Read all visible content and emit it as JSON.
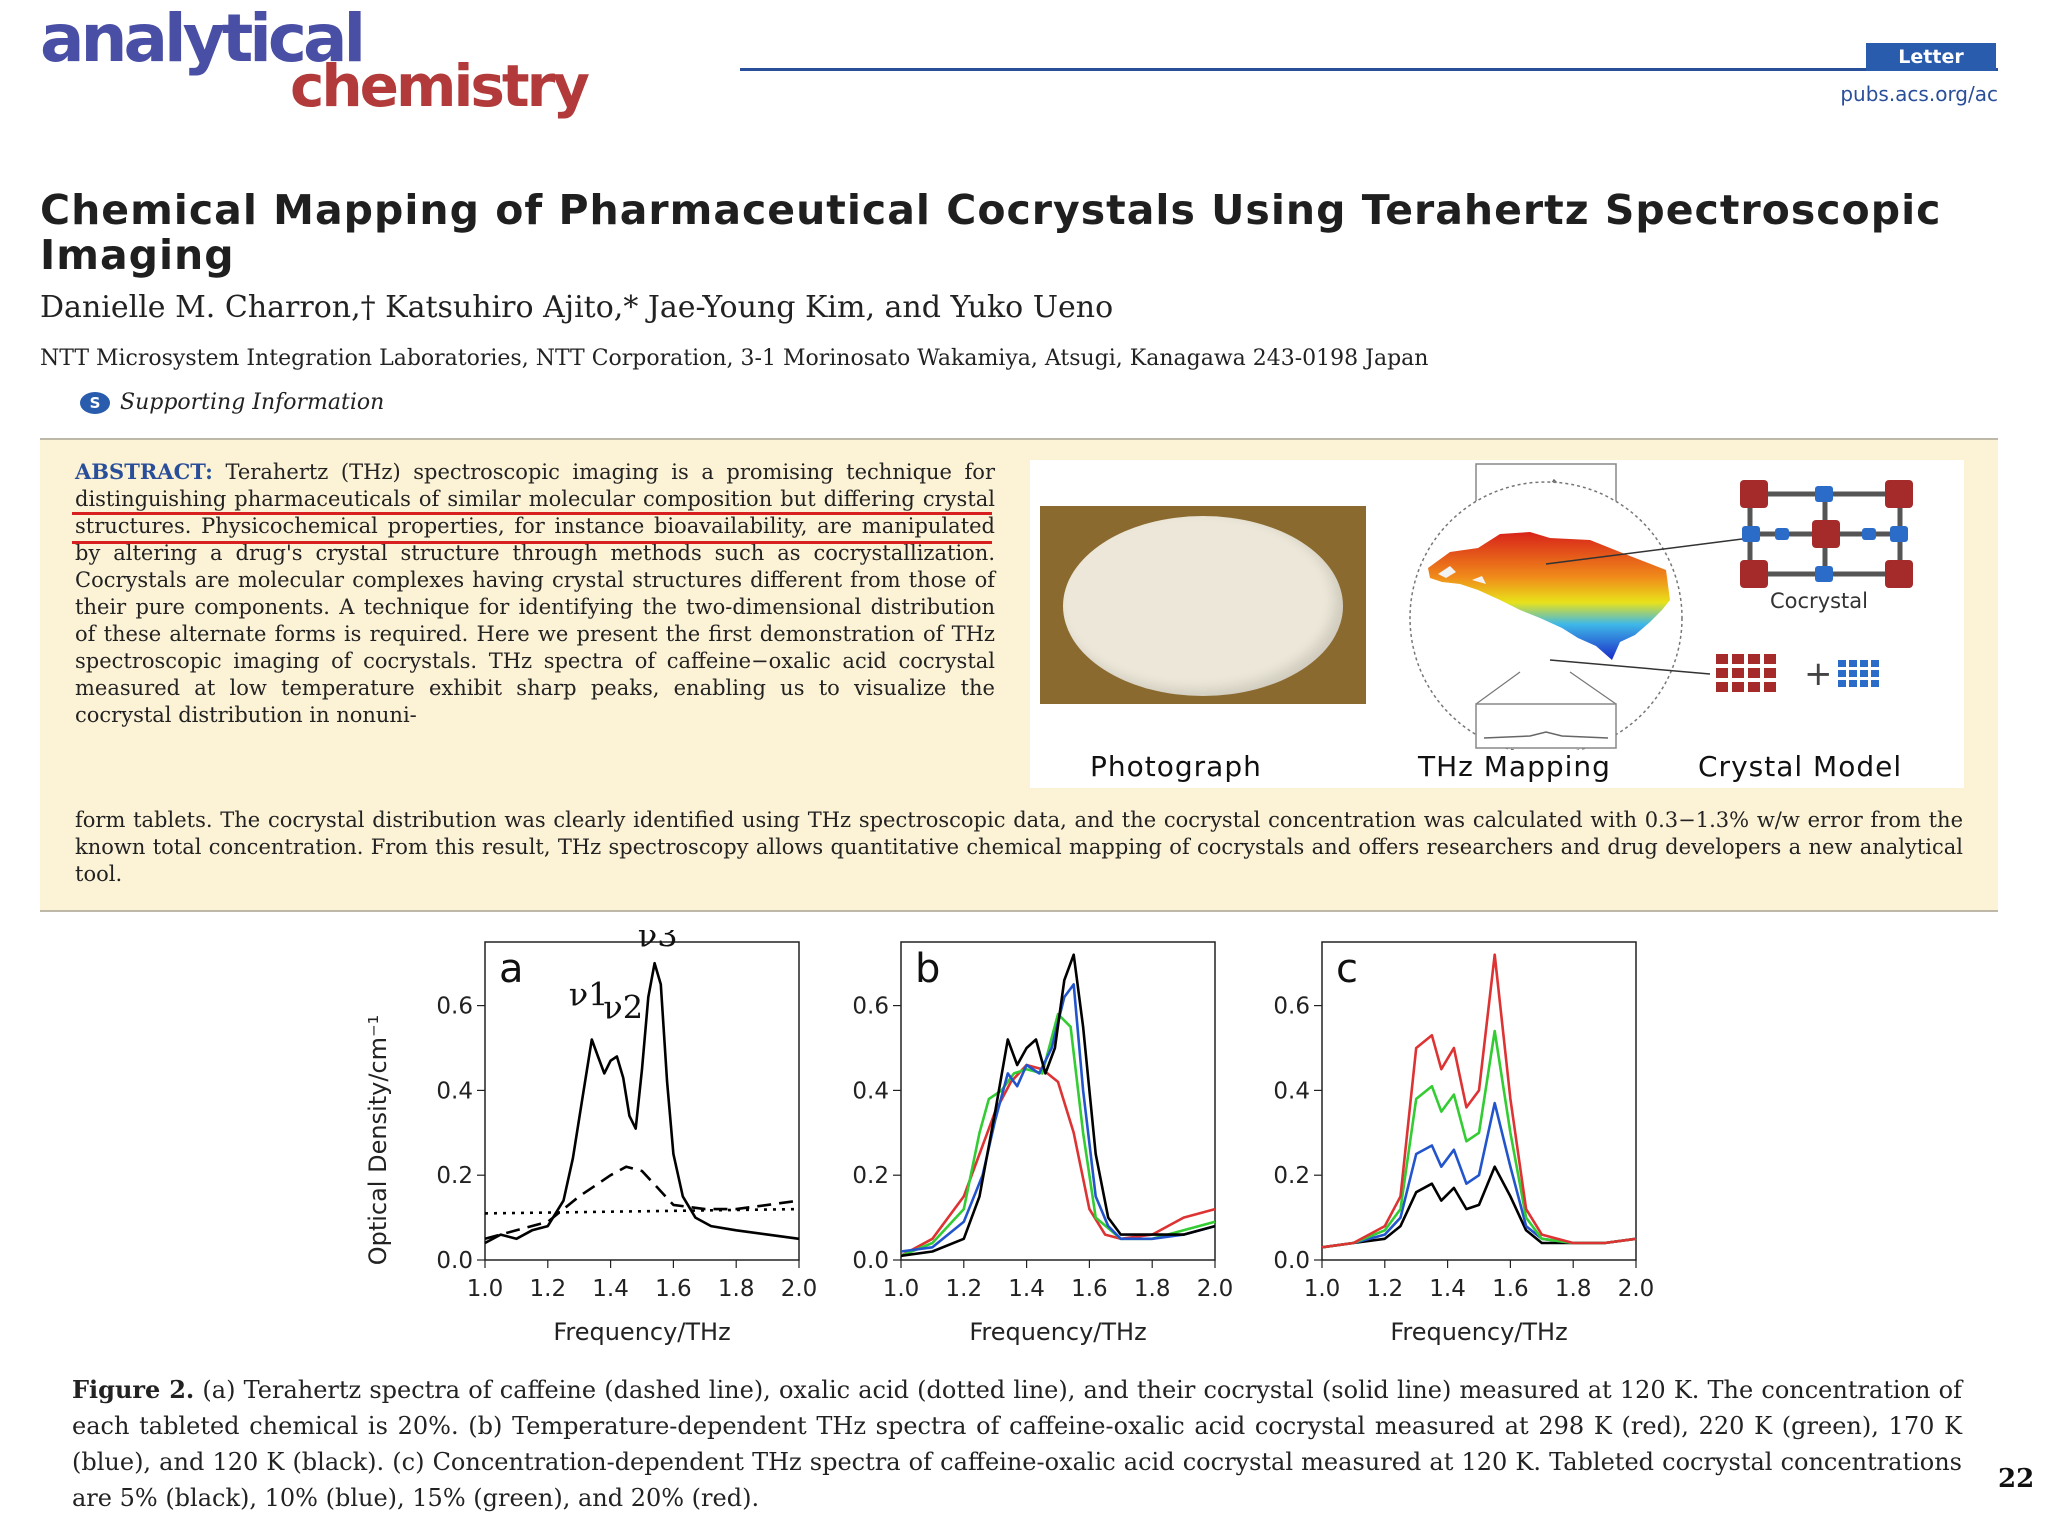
{
  "journal": {
    "logo_line1": "analytical",
    "logo_line2": "chemistry",
    "article_type": "Letter",
    "site": "pubs.acs.org/ac"
  },
  "title": "Chemical Mapping of Pharmaceutical Cocrystals Using Terahertz Spectroscopic Imaging",
  "authors": "Danielle M. Charron,† Katsuhiro Ajito,* Jae-Young Kim, and Yuko Ueno",
  "affiliation": "NTT Microsystem Integration Laboratories, NTT Corporation, 3-1 Morinosato Wakamiya, Atsugi, Kanagawa 243-0198 Japan",
  "supporting": {
    "icon": "S",
    "label": "Supporting Information"
  },
  "abstract": {
    "label": "ABSTRACT:",
    "text_a": "Terahertz (THz) spectroscopic imaging is a promising technique for distinguishing pharmaceuticals of similar molecular composition but differing crystal structures. Physicochemical properties, for instance bioavailability, are manipulated by altering a drug's crystal structure through methods such as cocrystallization. Cocrystals are molecular complexes having crystal structures different from those of their pure components. A technique for identifying the two-dimensional distribution of these alternate forms is required. Here we present the first demonstration of THz spectroscopic imaging of cocrystals. THz spectra of caffeine−oxalic acid cocrystal measured at low temperature exhibit sharp peaks, enabling us to visualize the cocrystal distribution in nonuni-",
    "text_b": "form tablets. The cocrystal distribution was clearly identified using THz spectroscopic data, and the cocrystal concentration was calculated with 0.3−1.3% w/w error from the known total concentration. From this result, THz spectroscopy allows quantitative chemical mapping of cocrystals and offers researchers and drug developers a new analytical tool."
  },
  "graphic": {
    "label_photo": "Photograph",
    "label_mapping": "THz Mapping",
    "label_model": "Crystal Model",
    "label_cocrystal": "Cocrystal",
    "plus": "+"
  },
  "figure": {
    "panels": [
      "a",
      "b",
      "c"
    ],
    "ylabel": "Optical Density/cm⁻¹",
    "xlabel": "Frequency/THz",
    "peak_labels": [
      "ν1",
      "ν2",
      "ν3"
    ],
    "caption_label": "Figure 2.",
    "caption_text": "(a) Terahertz spectra of caffeine (dashed line), oxalic acid (dotted line), and their cocrystal (solid line) measured at 120 K. The concentration of each tableted chemical is 20%. (b) Temperature-dependent THz spectra of caffeine-oxalic acid cocrystal measured at 298 K (red), 220 K (green), 170 K (blue), and 120 K (black). (c) Concentration-dependent THz spectra of caffeine-oxalic acid cocrystal measured at 120 K. Tableted cocrystal concentrations are 5% (black), 10% (blue), 15% (green), and 20% (red)."
  },
  "chart_data": [
    {
      "type": "line",
      "panel": "a",
      "xlabel": "Frequency/THz",
      "ylabel": "Optical Density/cm⁻¹",
      "xlim": [
        1.0,
        2.0
      ],
      "ylim": [
        0.0,
        0.75
      ],
      "xticks": [
        "1.0",
        "1.2",
        "1.4",
        "1.6",
        "1.8",
        "2.0"
      ],
      "yticks": [
        "0.0",
        "0.2",
        "0.4",
        "0.6"
      ],
      "annotations": [
        "ν1",
        "ν2",
        "ν3"
      ],
      "series": [
        {
          "style": "solid",
          "color": "#000000",
          "x": [
            1.0,
            1.05,
            1.1,
            1.15,
            1.2,
            1.25,
            1.28,
            1.31,
            1.34,
            1.36,
            1.38,
            1.4,
            1.42,
            1.44,
            1.46,
            1.48,
            1.5,
            1.52,
            1.54,
            1.56,
            1.58,
            1.6,
            1.63,
            1.67,
            1.72,
            1.8,
            1.9,
            2.0
          ],
          "y": [
            0.04,
            0.06,
            0.05,
            0.07,
            0.08,
            0.14,
            0.24,
            0.38,
            0.52,
            0.48,
            0.44,
            0.47,
            0.48,
            0.43,
            0.34,
            0.31,
            0.45,
            0.62,
            0.7,
            0.65,
            0.42,
            0.25,
            0.15,
            0.1,
            0.08,
            0.07,
            0.06,
            0.05
          ]
        },
        {
          "style": "dashed",
          "color": "#000000",
          "x": [
            1.0,
            1.1,
            1.2,
            1.3,
            1.4,
            1.45,
            1.5,
            1.55,
            1.6,
            1.7,
            1.8,
            1.9,
            2.0
          ],
          "y": [
            0.05,
            0.07,
            0.09,
            0.15,
            0.2,
            0.22,
            0.21,
            0.17,
            0.13,
            0.12,
            0.12,
            0.13,
            0.14
          ]
        },
        {
          "style": "dotted",
          "color": "#000000",
          "x": [
            1.0,
            2.0
          ],
          "y": [
            0.11,
            0.12
          ]
        }
      ]
    },
    {
      "type": "line",
      "panel": "b",
      "xlabel": "Frequency/THz",
      "xlim": [
        1.0,
        2.0
      ],
      "ylim": [
        0.0,
        0.75
      ],
      "xticks": [
        "1.0",
        "1.2",
        "1.4",
        "1.6",
        "1.8",
        "2.0"
      ],
      "yticks": [
        "0.0",
        "0.2",
        "0.4",
        "0.6"
      ],
      "series": [
        {
          "color": "#d33",
          "x": [
            1.0,
            1.1,
            1.2,
            1.25,
            1.3,
            1.35,
            1.4,
            1.45,
            1.5,
            1.55,
            1.6,
            1.65,
            1.7,
            1.8,
            1.9,
            2.0
          ],
          "y": [
            0.01,
            0.05,
            0.15,
            0.25,
            0.35,
            0.42,
            0.46,
            0.45,
            0.42,
            0.3,
            0.12,
            0.06,
            0.05,
            0.06,
            0.1,
            0.12
          ]
        },
        {
          "color": "#3c3",
          "x": [
            1.0,
            1.1,
            1.2,
            1.25,
            1.28,
            1.32,
            1.36,
            1.4,
            1.45,
            1.5,
            1.54,
            1.58,
            1.62,
            1.7,
            1.8,
            1.9,
            2.0
          ],
          "y": [
            0.01,
            0.04,
            0.12,
            0.3,
            0.38,
            0.4,
            0.44,
            0.45,
            0.44,
            0.58,
            0.55,
            0.3,
            0.1,
            0.05,
            0.05,
            0.07,
            0.09
          ]
        },
        {
          "color": "#25c",
          "x": [
            1.0,
            1.1,
            1.2,
            1.26,
            1.3,
            1.34,
            1.37,
            1.4,
            1.44,
            1.48,
            1.52,
            1.55,
            1.58,
            1.62,
            1.66,
            1.7,
            1.8,
            1.9,
            2.0
          ],
          "y": [
            0.02,
            0.03,
            0.09,
            0.2,
            0.33,
            0.44,
            0.41,
            0.46,
            0.44,
            0.5,
            0.62,
            0.65,
            0.4,
            0.15,
            0.08,
            0.05,
            0.05,
            0.06,
            0.08
          ]
        },
        {
          "color": "#000",
          "x": [
            1.0,
            1.1,
            1.2,
            1.25,
            1.3,
            1.34,
            1.37,
            1.4,
            1.43,
            1.46,
            1.49,
            1.52,
            1.55,
            1.58,
            1.62,
            1.66,
            1.7,
            1.8,
            1.9,
            2.0
          ],
          "y": [
            0.01,
            0.02,
            0.05,
            0.15,
            0.35,
            0.52,
            0.46,
            0.5,
            0.52,
            0.44,
            0.5,
            0.66,
            0.72,
            0.55,
            0.25,
            0.1,
            0.06,
            0.06,
            0.06,
            0.08
          ]
        }
      ]
    },
    {
      "type": "line",
      "panel": "c",
      "xlabel": "Frequency/THz",
      "xlim": [
        1.0,
        2.0
      ],
      "ylim": [
        0.0,
        0.75
      ],
      "xticks": [
        "1.0",
        "1.2",
        "1.4",
        "1.6",
        "1.8",
        "2.0"
      ],
      "yticks": [
        "0.0",
        "0.2",
        "0.4",
        "0.6"
      ],
      "series": [
        {
          "color": "#000",
          "x": [
            1.0,
            1.1,
            1.2,
            1.25,
            1.3,
            1.35,
            1.38,
            1.42,
            1.46,
            1.5,
            1.55,
            1.6,
            1.65,
            1.7,
            1.8,
            1.9,
            2.0
          ],
          "y": [
            0.03,
            0.04,
            0.05,
            0.08,
            0.16,
            0.18,
            0.14,
            0.17,
            0.12,
            0.13,
            0.22,
            0.15,
            0.07,
            0.04,
            0.04,
            0.04,
            0.05
          ]
        },
        {
          "color": "#25c",
          "x": [
            1.0,
            1.1,
            1.2,
            1.25,
            1.3,
            1.35,
            1.38,
            1.42,
            1.46,
            1.5,
            1.55,
            1.6,
            1.65,
            1.7,
            1.8,
            1.9,
            2.0
          ],
          "y": [
            0.03,
            0.04,
            0.06,
            0.1,
            0.25,
            0.27,
            0.22,
            0.26,
            0.18,
            0.2,
            0.37,
            0.22,
            0.08,
            0.05,
            0.04,
            0.04,
            0.05
          ]
        },
        {
          "color": "#3c3",
          "x": [
            1.0,
            1.1,
            1.2,
            1.25,
            1.3,
            1.35,
            1.38,
            1.42,
            1.46,
            1.5,
            1.55,
            1.6,
            1.65,
            1.7,
            1.8,
            1.9,
            2.0
          ],
          "y": [
            0.03,
            0.04,
            0.07,
            0.12,
            0.38,
            0.41,
            0.35,
            0.39,
            0.28,
            0.3,
            0.54,
            0.3,
            0.1,
            0.05,
            0.04,
            0.04,
            0.05
          ]
        },
        {
          "color": "#d33",
          "x": [
            1.0,
            1.1,
            1.2,
            1.25,
            1.3,
            1.35,
            1.38,
            1.42,
            1.46,
            1.5,
            1.55,
            1.6,
            1.65,
            1.7,
            1.8,
            1.9,
            2.0
          ],
          "y": [
            0.03,
            0.04,
            0.08,
            0.15,
            0.5,
            0.53,
            0.45,
            0.5,
            0.36,
            0.4,
            0.72,
            0.38,
            0.12,
            0.06,
            0.04,
            0.04,
            0.05
          ]
        }
      ]
    }
  ],
  "page_number": "22"
}
